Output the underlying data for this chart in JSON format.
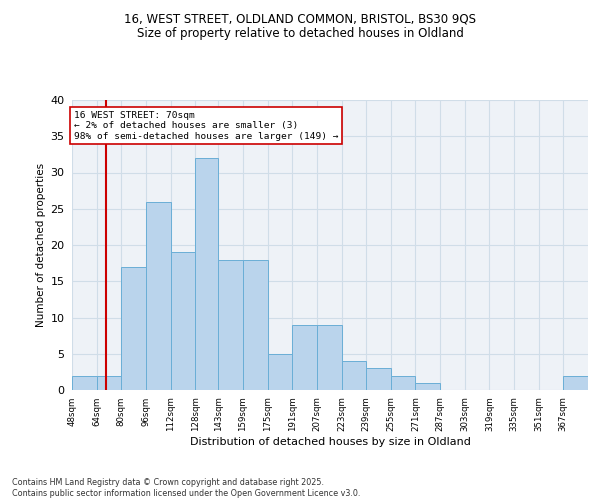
{
  "title1": "16, WEST STREET, OLDLAND COMMON, BRISTOL, BS30 9QS",
  "title2": "Size of property relative to detached houses in Oldland",
  "xlabel": "Distribution of detached houses by size in Oldland",
  "ylabel": "Number of detached properties",
  "bin_labels": [
    "48sqm",
    "64sqm",
    "80sqm",
    "96sqm",
    "112sqm",
    "128sqm",
    "143sqm",
    "159sqm",
    "175sqm",
    "191sqm",
    "207sqm",
    "223sqm",
    "239sqm",
    "255sqm",
    "271sqm",
    "287sqm",
    "303sqm",
    "319sqm",
    "335sqm",
    "351sqm",
    "367sqm"
  ],
  "bar_values": [
    2,
    2,
    17,
    26,
    19,
    32,
    18,
    18,
    5,
    9,
    9,
    4,
    3,
    2,
    1,
    0,
    0,
    0,
    0,
    0,
    2
  ],
  "bar_color": "#bad4ec",
  "bar_edge_color": "#6aaed6",
  "reference_line_x": 70,
  "bin_edges": [
    48,
    64,
    80,
    96,
    112,
    128,
    143,
    159,
    175,
    191,
    207,
    223,
    239,
    255,
    271,
    287,
    303,
    319,
    335,
    351,
    367,
    383
  ],
  "annotation_title": "16 WEST STREET: 70sqm",
  "annotation_line1": "← 2% of detached houses are smaller (3)",
  "annotation_line2": "98% of semi-detached houses are larger (149) →",
  "ref_line_color": "#cc0000",
  "grid_color": "#d0dde8",
  "background_color": "#eef2f7",
  "footer1": "Contains HM Land Registry data © Crown copyright and database right 2025.",
  "footer2": "Contains public sector information licensed under the Open Government Licence v3.0.",
  "ylim": [
    0,
    40
  ],
  "yticks": [
    0,
    5,
    10,
    15,
    20,
    25,
    30,
    35,
    40
  ]
}
